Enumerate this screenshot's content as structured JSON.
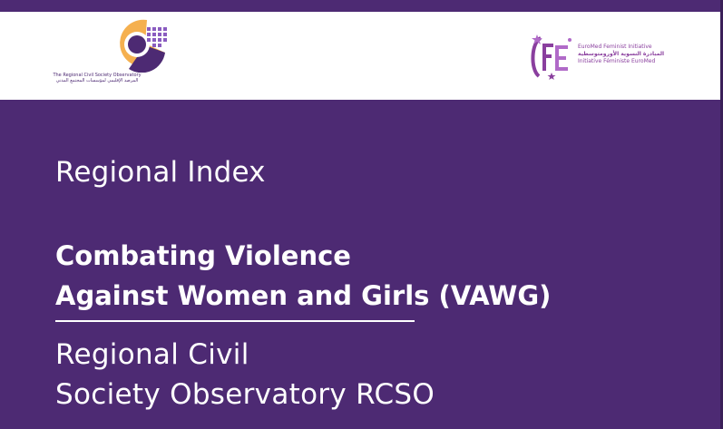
{
  "header": {
    "rcso_logo": {
      "icon": "rcso-logo-icon",
      "caption_en": "The Regional Civil Society Observatory",
      "caption_ar": "المرصد الإقليمي لمؤسسات المجتمع المدني"
    },
    "efi_logo": {
      "icon": "euromed-feminist-initiative-logo-icon",
      "name_en": "EuroMed Feminist Initiative",
      "name_ar": "المبادرة النسوية الأورومتوسطية",
      "name_fr": "Initiative Féministe EuroMed"
    }
  },
  "cover": {
    "subtitle": "Regional Index",
    "title_line1": "Combating Violence",
    "title_line2": "Against Women and Girls (VAWG)",
    "org_line1": "Regional Civil",
    "org_line2": "Society Observatory RCSO"
  },
  "colors": {
    "background": "#4d2a73",
    "header_band": "#ffffff",
    "logo_orange": "#f5b04f",
    "logo_purple": "#4d2a73",
    "efi_purple": "#8a3f9e"
  }
}
